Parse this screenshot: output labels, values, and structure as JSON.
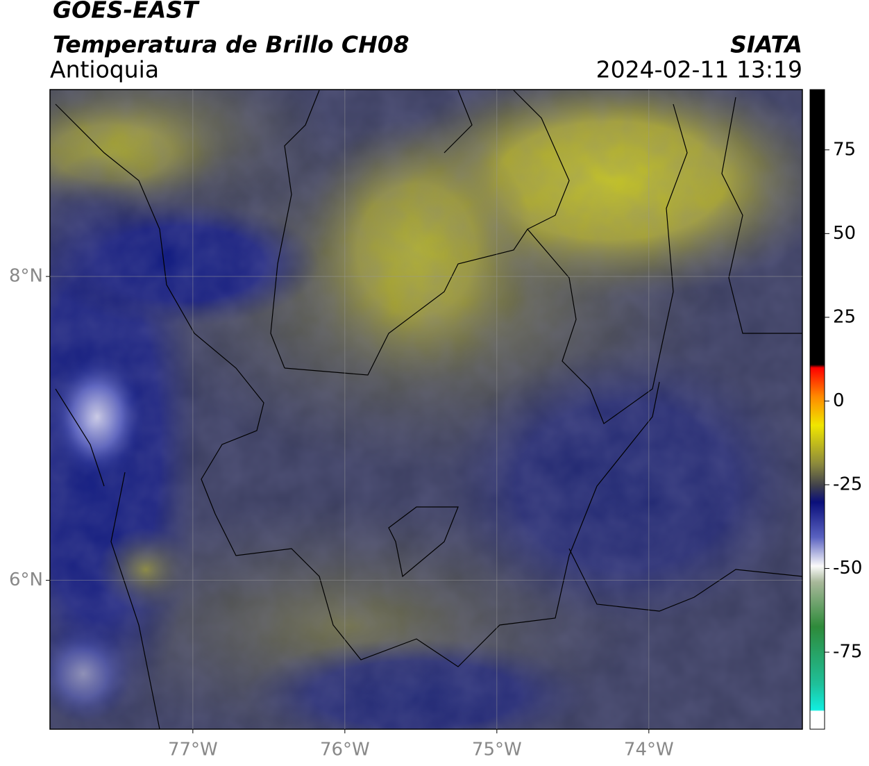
{
  "header": {
    "title": "GOES-EAST",
    "subtitle": "Temperatura de Brillo CH08",
    "region": "Antioquia",
    "source": "SIATA",
    "datetime": "2024-02-11 13:19"
  },
  "map": {
    "xlim": [
      -77.94,
      -72.99
    ],
    "ylim": [
      5.02,
      9.23
    ],
    "xticks": [
      {
        "value": -77,
        "label": "77°W"
      },
      {
        "value": -76,
        "label": "76°W"
      },
      {
        "value": -75,
        "label": "75°W"
      },
      {
        "value": -74,
        "label": "74°W"
      }
    ],
    "yticks": [
      {
        "value": 6,
        "label": "6°N"
      },
      {
        "value": 8,
        "label": "8°N"
      }
    ],
    "grid": true
  },
  "colorbar": {
    "ylim": [
      -98,
      93
    ],
    "yticks": [
      -75,
      -50,
      -25,
      0,
      25,
      50,
      75
    ]
  }
}
